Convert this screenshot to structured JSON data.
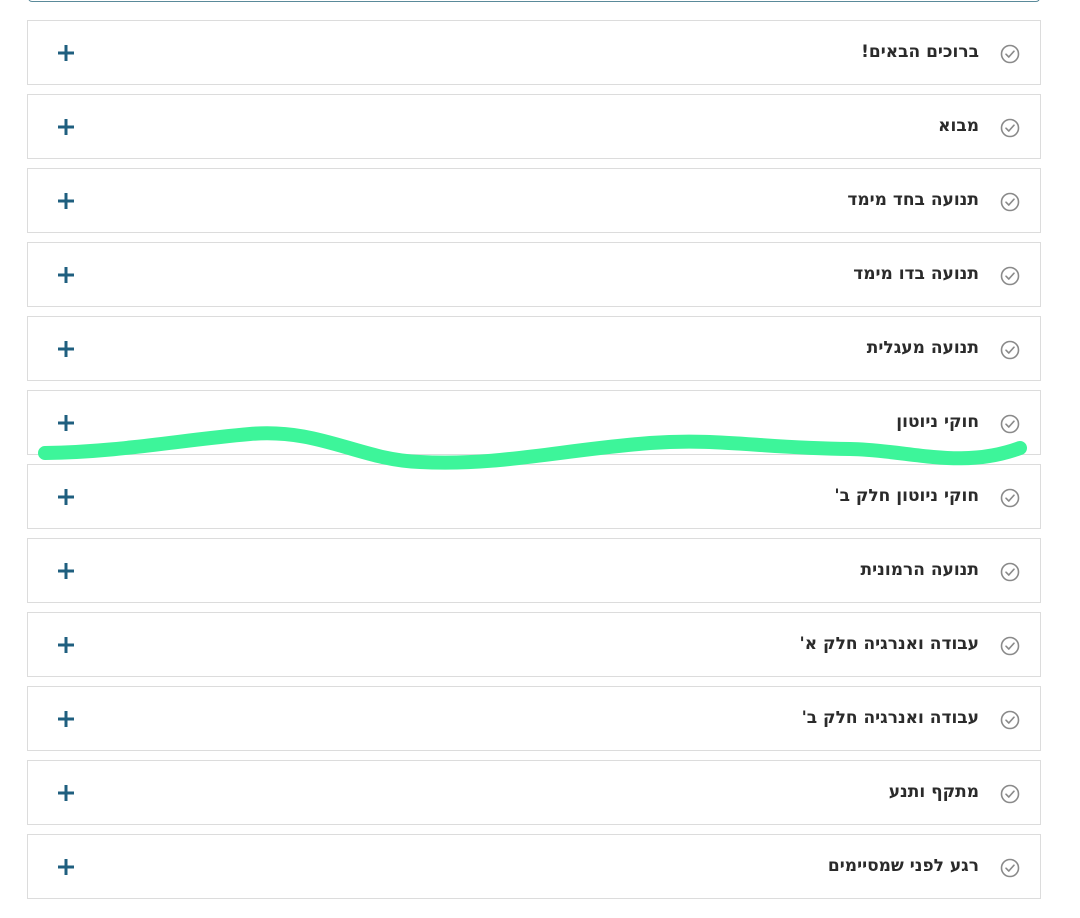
{
  "accordion": {
    "items": [
      {
        "title": "ברוכים הבאים!"
      },
      {
        "title": "מבוא"
      },
      {
        "title": "תנועה בחד מימד"
      },
      {
        "title": "תנועה בדו מימד"
      },
      {
        "title": "תנועה מעגלית"
      },
      {
        "title": "חוקי ניוטון"
      },
      {
        "title": "חוקי ניוטון חלק ב'"
      },
      {
        "title": "תנועה הרמונית"
      },
      {
        "title": "עבודה ואנרגיה חלק א'"
      },
      {
        "title": "עבודה ואנרגיה חלק ב'"
      },
      {
        "title": "מתקף ותנע"
      },
      {
        "title": "רגע לפני שמסיימים"
      }
    ]
  },
  "icons": {
    "status": "check-circle-icon",
    "expand": "plus-icon"
  },
  "colors": {
    "plus": "#1f5f7f",
    "check": "#8a8a8a",
    "border": "#dcdcdc",
    "scribble": "#3df59a"
  }
}
